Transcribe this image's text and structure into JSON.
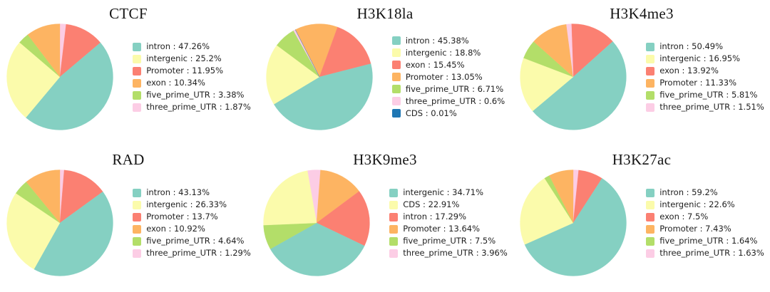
{
  "figure_background": "#ffffff",
  "palette": [
    "#85d0c2",
    "#fbfbab",
    "#fb8072",
    "#fdb462",
    "#b3de69",
    "#fccde5",
    "#1f77b4"
  ],
  "chart_data": [
    {
      "type": "pie",
      "title": "CTCF",
      "labels": [
        "intron",
        "intergenic",
        "Promoter",
        "exon",
        "five_prime_UTR",
        "three_prime_UTR"
      ],
      "values": [
        47.26,
        25.2,
        11.95,
        10.34,
        3.38,
        1.87
      ],
      "legend_position": "right",
      "legend_frame": false,
      "start_angle": 0,
      "draw_order": [
        5,
        2,
        0,
        1,
        4,
        3
      ]
    },
    {
      "type": "pie",
      "title": "H3K18la",
      "labels": [
        "intron",
        "intergenic",
        "exon",
        "Promoter",
        "five_prime_UTR",
        "three_prime_UTR",
        "CDS"
      ],
      "values": [
        45.38,
        18.8,
        15.45,
        13.05,
        6.71,
        0.6,
        0.01
      ],
      "legend_position": "right",
      "legend_frame": false,
      "start_angle": -27,
      "draw_order": [
        3,
        2,
        0,
        1,
        4,
        5,
        6
      ]
    },
    {
      "type": "pie",
      "title": "H3K4me3",
      "labels": [
        "intron",
        "intergenic",
        "exon",
        "Promoter",
        "five_prime_UTR",
        "three_prime_UTR"
      ],
      "values": [
        50.49,
        16.95,
        13.92,
        11.33,
        5.81,
        1.51
      ],
      "legend_position": "right",
      "legend_frame": false,
      "start_angle": -2,
      "draw_order": [
        2,
        0,
        1,
        4,
        3,
        5
      ]
    },
    {
      "type": "pie",
      "title": "RAD",
      "labels": [
        "intron",
        "intergenic",
        "Promoter",
        "exon",
        "five_prime_UTR",
        "three_prime_UTR"
      ],
      "values": [
        43.13,
        26.33,
        13.7,
        10.92,
        4.64,
        1.29
      ],
      "legend_position": "right",
      "legend_frame": false,
      "start_angle": 0,
      "draw_order": [
        5,
        2,
        0,
        1,
        4,
        3
      ]
    },
    {
      "type": "pie",
      "title": "H3K9me3",
      "labels": [
        "intergenic",
        "CDS",
        "intron",
        "Promoter",
        "five_prime_UTR",
        "three_prime_UTR"
      ],
      "values": [
        34.71,
        22.91,
        17.29,
        13.64,
        7.5,
        3.96
      ],
      "legend_position": "right",
      "legend_frame": false,
      "start_angle": -10,
      "draw_order": [
        5,
        3,
        2,
        0,
        4,
        1
      ]
    },
    {
      "type": "pie",
      "title": "H3K27ac",
      "labels": [
        "intron",
        "intergenic",
        "exon",
        "Promoter",
        "five_prime_UTR",
        "three_prime_UTR"
      ],
      "values": [
        59.2,
        22.6,
        7.5,
        7.43,
        1.64,
        1.63
      ],
      "legend_position": "right",
      "legend_frame": false,
      "start_angle": 0,
      "draw_order": [
        5,
        2,
        0,
        1,
        4,
        3
      ]
    }
  ]
}
